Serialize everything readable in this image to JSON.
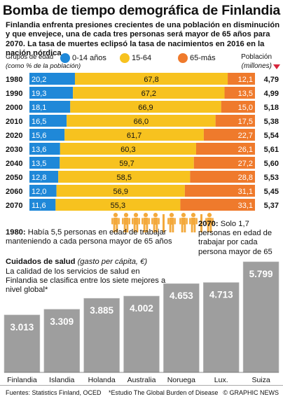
{
  "title": "Bomba de tiempo demográfica de Finlandia",
  "subtitle": "Finlandia enfrenta presiones crecientes de una población en disminución y que envejece, una de cada tres personas será mayor de 65 años para 2070. La tasa de muertes eclipsó la tasa de nacimientos en 2016 en la nación nórdica",
  "legend": {
    "label_line1": "Grupos de edad",
    "label_line2": "(como % de la población)",
    "groups": [
      "0-14 años",
      "15-64",
      "65-más"
    ],
    "population_line1": "Población",
    "population_line2": "(millones)"
  },
  "colors": {
    "young": "#1f88d8",
    "working": "#f7c21f",
    "old": "#ef7a2c",
    "health_bar": "#9e9e9e",
    "people": "#f3a93c"
  },
  "chart_data": [
    {
      "type": "bar",
      "stacked": true,
      "orientation": "horizontal",
      "categories": [
        "1980",
        "1990",
        "2000",
        "2010",
        "2020",
        "2030",
        "2040",
        "2050",
        "2060",
        "2070"
      ],
      "series": [
        {
          "name": "0-14 años",
          "values": [
            20.2,
            19.3,
            18.1,
            16.5,
            15.6,
            13.6,
            13.5,
            12.8,
            12.0,
            11.6
          ]
        },
        {
          "name": "15-64",
          "values": [
            67.8,
            67.2,
            66.9,
            66.0,
            61.7,
            60.3,
            59.7,
            58.5,
            56.9,
            55.3
          ]
        },
        {
          "name": "65-más",
          "values": [
            12.1,
            13.5,
            15.0,
            17.5,
            22.7,
            26.1,
            27.2,
            28.8,
            31.1,
            33.1
          ]
        }
      ],
      "value_labels": {
        "young": [
          "20,2",
          "19,3",
          "18,1",
          "16,5",
          "15,6",
          "13,6",
          "13,5",
          "12,8",
          "12,0",
          "11,6"
        ],
        "working": [
          "67,8",
          "67,2",
          "66,9",
          "66,0",
          "61,7",
          "60,3",
          "59,7",
          "58,5",
          "56,9",
          "55,3"
        ],
        "old": [
          "12,1",
          "13,5",
          "15,0",
          "17,5",
          "22,7",
          "26,1",
          "27,2",
          "28,8",
          "31,1",
          "33,1"
        ]
      },
      "population": {
        "name": "Población (millones)",
        "values": [
          4.79,
          4.99,
          5.18,
          5.38,
          5.54,
          5.61,
          5.6,
          5.53,
          5.45,
          5.37
        ],
        "labels": [
          "4,79",
          "4,99",
          "5,18",
          "5,38",
          "5,54",
          "5,61",
          "5,60",
          "5,53",
          "5,45",
          "5,37"
        ]
      },
      "xlim": [
        0,
        100
      ]
    },
    {
      "type": "bar",
      "title": "Cuidados de salud",
      "subtitle": "(gasto per cápita, €)",
      "categories": [
        "Finlandia",
        "Islandia",
        "Holanda",
        "Australia",
        "Noruega",
        "Lux.",
        "Suiza"
      ],
      "values": [
        3013,
        3309,
        3885,
        4002,
        4653,
        4713,
        5799
      ],
      "value_labels": [
        "3.013",
        "3.309",
        "3.885",
        "4.002",
        "4.653",
        "4.713",
        "5.799"
      ]
    }
  ],
  "notes": {
    "n1980_year": "1980:",
    "n1980_text": "Había 5,5 personas en edad de trabajar manteniendo a cada persona mayor de 65 años",
    "n2070_year": "2070:",
    "n2070_text": "Solo 1,7 personas en edad de trabajar por cada persona mayor de 65"
  },
  "health": {
    "title": "Cuidados de salud",
    "unit": "(gasto per cápita, €)",
    "description": "La calidad de los servicios de salud en Finlandia se clasifica entre los siete mejores a nivel global*"
  },
  "footer": {
    "source": "Fuentes: Statistics Finland, OCED",
    "note": "*Estudio The Global Burden of Disease",
    "credit": "© GRAPHIC NEWS"
  }
}
